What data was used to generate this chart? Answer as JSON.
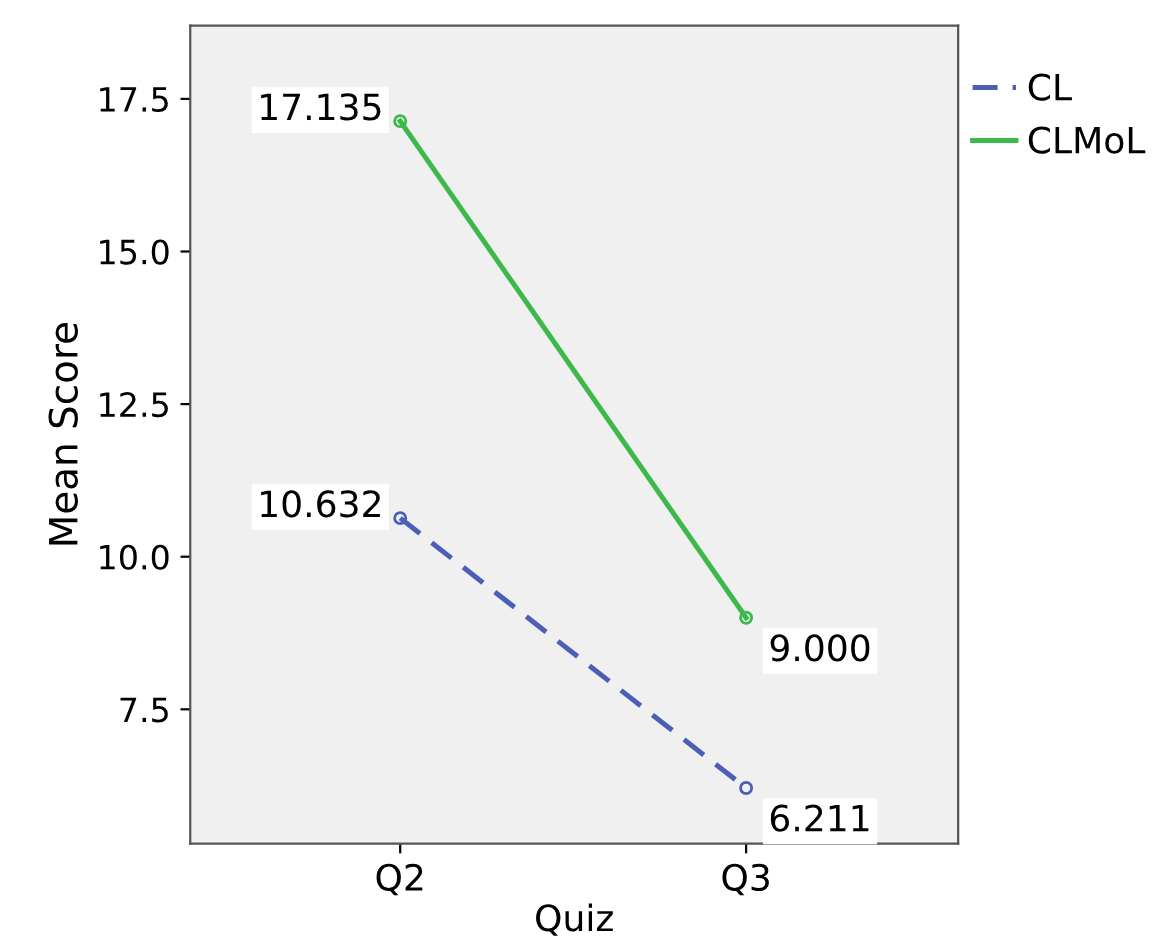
{
  "chart_data": {
    "type": "line",
    "xlabel": "Quiz",
    "ylabel": "Mean Score",
    "categories": [
      "Q2",
      "Q3"
    ],
    "series": [
      {
        "name": "CL",
        "color": "#4a5fb5",
        "values": [
          10.632,
          6.211
        ],
        "value_labels": [
          "10.632",
          "6.211"
        ],
        "line_style": "dashed"
      },
      {
        "name": "CLMoL",
        "color": "#3cb94a",
        "values": [
          17.135,
          9.0
        ],
        "value_labels": [
          "17.135",
          "9.000"
        ],
        "line_style": "solid"
      }
    ],
    "ylim": [
      5.3,
      18.7
    ],
    "yticks": [
      {
        "value": 7.5,
        "label": "7.5"
      },
      {
        "value": 10,
        "label": "10.0"
      },
      {
        "value": 12.5,
        "label": "12.5"
      },
      {
        "value": 15,
        "label": "15.0"
      },
      {
        "value": 17.5,
        "label": "17.5"
      }
    ],
    "marker": "circle",
    "legend": "top right",
    "grid": false
  }
}
